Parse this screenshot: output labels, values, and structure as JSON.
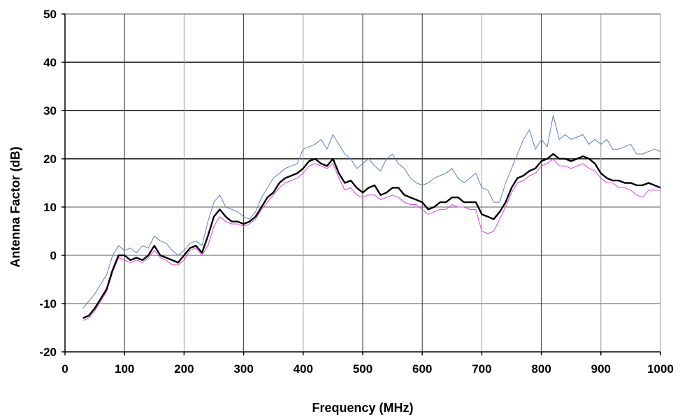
{
  "chart_data": {
    "type": "line",
    "title": "",
    "xlabel": "Frequency (MHz)",
    "ylabel": "Antenna Factor (dB)",
    "xlim": [
      0,
      1000
    ],
    "ylim": [
      -20,
      50
    ],
    "x_ticks": [
      0,
      100,
      200,
      300,
      400,
      500,
      600,
      700,
      800,
      900,
      1000
    ],
    "y_ticks": [
      -20,
      -10,
      0,
      10,
      20,
      30,
      40,
      50
    ],
    "x_tick_labels": [
      "0",
      "100",
      "200",
      "300",
      "400",
      "500",
      "600",
      "700",
      "800",
      "900",
      "1000"
    ],
    "y_tick_labels": [
      "-20",
      "-10",
      "0",
      "10",
      "20",
      "30",
      "40",
      "50"
    ],
    "grid": true,
    "legend": "none",
    "x": [
      30,
      40,
      50,
      60,
      70,
      80,
      90,
      100,
      110,
      120,
      130,
      140,
      150,
      160,
      170,
      180,
      190,
      200,
      210,
      220,
      230,
      240,
      250,
      260,
      270,
      280,
      290,
      300,
      310,
      320,
      330,
      340,
      350,
      360,
      370,
      380,
      390,
      400,
      410,
      420,
      430,
      440,
      450,
      460,
      470,
      480,
      490,
      500,
      510,
      520,
      530,
      540,
      550,
      560,
      570,
      580,
      590,
      600,
      610,
      620,
      630,
      640,
      650,
      660,
      670,
      680,
      690,
      700,
      710,
      720,
      730,
      740,
      750,
      760,
      770,
      780,
      790,
      800,
      810,
      820,
      830,
      840,
      850,
      860,
      870,
      880,
      890,
      900,
      910,
      920,
      930,
      940,
      950,
      960,
      970,
      980,
      990,
      1000
    ],
    "series": [
      {
        "color": "#5b7fc7",
        "values": [
          -11,
          -9.5,
          -8,
          -6,
          -4,
          0,
          2,
          1,
          1.5,
          0.5,
          2,
          1.5,
          4,
          3,
          2.5,
          1,
          0,
          1,
          2.5,
          3,
          2,
          7,
          11,
          12.5,
          10,
          9.5,
          9,
          8,
          7.5,
          9,
          12,
          14,
          16,
          17,
          18,
          18.5,
          19,
          22,
          22.5,
          23,
          24,
          22,
          25,
          23,
          21,
          20,
          18,
          19,
          20,
          18.5,
          17.5,
          20,
          21,
          19,
          18,
          16,
          15,
          14.5,
          15,
          16,
          16.5,
          17,
          18,
          16,
          15,
          16,
          17,
          14,
          13.5,
          11,
          11,
          15,
          18,
          21,
          24,
          26,
          22,
          24,
          22.5,
          29,
          24,
          25,
          24,
          24.5,
          25,
          23,
          24,
          23,
          24,
          22,
          22,
          22.5,
          23,
          21,
          21,
          21.5,
          22,
          21.5
        ]
      },
      {
        "color": "#000000",
        "values": [
          -13,
          -12.5,
          -11,
          -9,
          -7,
          -3,
          0,
          0,
          -1,
          -0.5,
          -1,
          0,
          2,
          0,
          -0.5,
          -1,
          -1.5,
          0,
          1.5,
          2,
          0.5,
          4,
          8,
          9.5,
          8,
          7,
          7,
          6.5,
          7,
          8,
          10,
          12,
          13,
          15,
          16,
          16.5,
          17,
          18,
          19.5,
          20,
          19,
          18.5,
          20,
          17,
          15,
          15.5,
          14,
          13,
          14,
          14.5,
          12.5,
          13,
          14,
          14,
          12.5,
          12,
          11.5,
          11,
          9.5,
          10,
          11,
          11,
          12,
          12,
          11,
          11,
          11,
          8.5,
          8,
          7.5,
          9,
          11,
          14,
          16,
          16.5,
          17.5,
          18,
          19.5,
          20,
          21,
          20,
          20,
          19.5,
          20,
          20.5,
          20,
          19,
          17,
          16,
          15.5,
          15.5,
          15,
          15,
          14.5,
          14.5,
          15,
          14.5,
          14
        ]
      },
      {
        "color": "#e040e0",
        "values": [
          -13.5,
          -13,
          -11.5,
          -9.5,
          -7.5,
          -3.5,
          -0.5,
          -1,
          -1.5,
          -1,
          -1.5,
          -0.5,
          1,
          -0.5,
          -1,
          -2,
          -2,
          -1,
          1,
          1.5,
          0,
          2,
          6,
          8,
          7,
          6.5,
          6.5,
          6,
          6.5,
          7.5,
          9.5,
          11,
          12.5,
          14,
          15,
          15.5,
          16,
          17,
          18.5,
          19,
          18.5,
          18,
          19,
          16,
          13.5,
          14,
          12.5,
          12,
          12.5,
          12.5,
          11.5,
          12,
          12.5,
          12,
          11,
          10.5,
          10.5,
          9.5,
          8.5,
          9,
          9.5,
          9.5,
          10.5,
          10,
          10,
          9.5,
          9.5,
          5,
          4.5,
          5,
          7.5,
          10,
          13,
          15,
          15.5,
          16.5,
          17,
          18.5,
          19,
          20,
          18.5,
          18.5,
          18,
          18.5,
          19,
          18,
          17.5,
          16,
          15,
          15,
          14,
          14,
          13.5,
          12.5,
          12,
          13.5,
          13.5,
          13.5
        ]
      }
    ]
  }
}
